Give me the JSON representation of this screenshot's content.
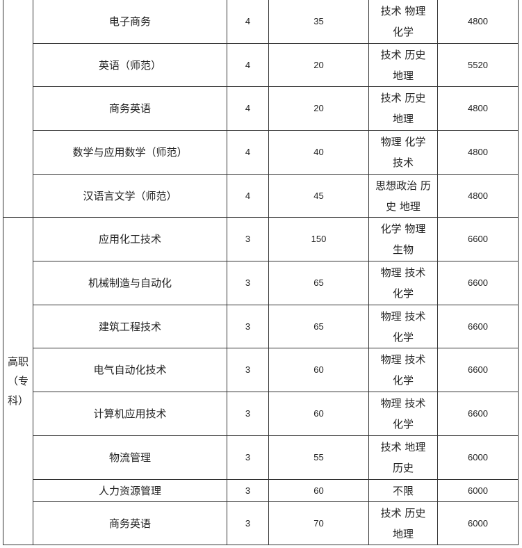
{
  "table": {
    "groups": [
      {
        "label": "",
        "rows": [
          {
            "major": "电子商务",
            "years": "4",
            "quota": "35",
            "subjects": [
              "技术 物理",
              "化学"
            ],
            "fee": "4800"
          },
          {
            "major": "英语（师范）",
            "years": "4",
            "quota": "20",
            "subjects": [
              "技术 历史",
              "地理"
            ],
            "fee": "5520"
          },
          {
            "major": "商务英语",
            "years": "4",
            "quota": "20",
            "subjects": [
              "技术 历史",
              "地理"
            ],
            "fee": "4800"
          },
          {
            "major": "数学与应用数学（师范）",
            "years": "4",
            "quota": "40",
            "subjects": [
              "物理 化学",
              "技术"
            ],
            "fee": "4800"
          },
          {
            "major": "汉语言文学（师范）",
            "years": "4",
            "quota": "45",
            "subjects": [
              "思想政治 历",
              "史 地理"
            ],
            "fee": "4800"
          }
        ]
      },
      {
        "label": "高职（专科）",
        "label_lines": [
          "高职",
          "（专",
          "科）"
        ],
        "rows": [
          {
            "major": "应用化工技术",
            "years": "3",
            "quota": "150",
            "subjects": [
              "化学 物理",
              "生物"
            ],
            "fee": "6600"
          },
          {
            "major": "机械制造与自动化",
            "years": "3",
            "quota": "65",
            "subjects": [
              "物理 技术",
              "化学"
            ],
            "fee": "6600"
          },
          {
            "major": "建筑工程技术",
            "years": "3",
            "quota": "65",
            "subjects": [
              "物理 技术",
              "化学"
            ],
            "fee": "6600"
          },
          {
            "major": "电气自动化技术",
            "years": "3",
            "quota": "60",
            "subjects": [
              "物理 技术",
              "化学"
            ],
            "fee": "6600"
          },
          {
            "major": "计算机应用技术",
            "years": "3",
            "quota": "60",
            "subjects": [
              "物理 技术",
              "化学"
            ],
            "fee": "6600"
          },
          {
            "major": "物流管理",
            "years": "3",
            "quota": "55",
            "subjects": [
              "技术 地理",
              "历史"
            ],
            "fee": "6000"
          },
          {
            "major": "人力资源管理",
            "years": "3",
            "quota": "60",
            "subjects": [
              "不限"
            ],
            "fee": "6000"
          },
          {
            "major": "商务英语",
            "years": "3",
            "quota": "70",
            "subjects": [
              "技术 历史",
              "地理"
            ],
            "fee": "6000"
          }
        ]
      }
    ]
  }
}
